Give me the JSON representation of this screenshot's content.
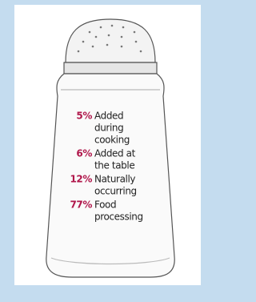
{
  "items": [
    {
      "percent": "5%",
      "label": [
        "Added",
        "during",
        "cooking"
      ]
    },
    {
      "percent": "6%",
      "label": [
        "Added at",
        "the table"
      ]
    },
    {
      "percent": "12%",
      "label": [
        "Naturally",
        "occurring"
      ]
    },
    {
      "percent": "77%",
      "label": [
        "Food",
        "processing"
      ]
    }
  ]
}
